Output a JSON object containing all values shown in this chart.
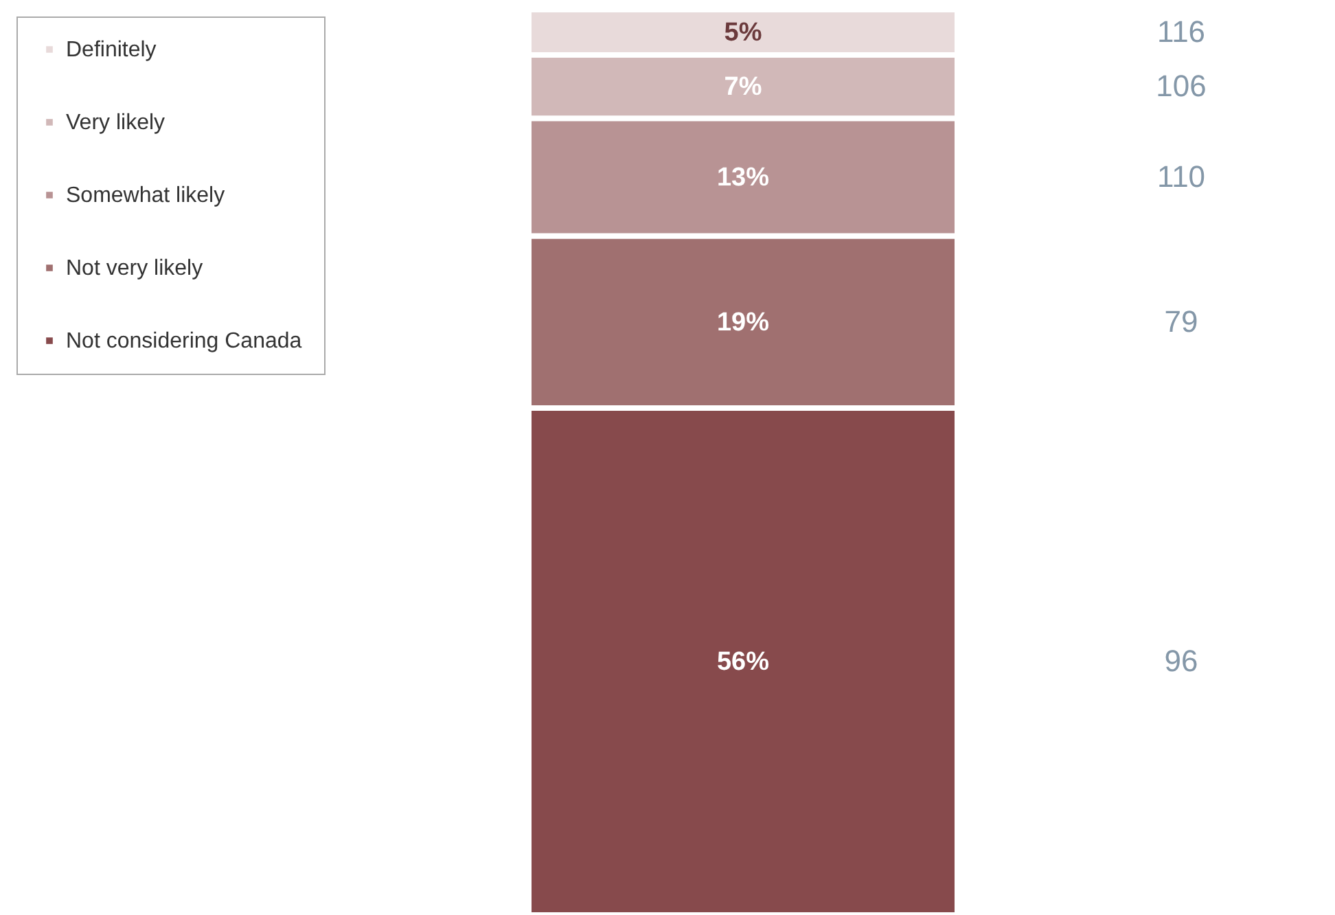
{
  "chart_data": {
    "type": "bar",
    "stacked": true,
    "categories": [
      null
    ],
    "legend": "top left",
    "ylim": [
      0,
      100
    ],
    "series": [
      {
        "name": "Not considering Canada",
        "color": "#874a4c",
        "values": [
          56
        ],
        "value_labels": [
          "56%"
        ]
      },
      {
        "name": "Not very likely",
        "color": "#a07070",
        "values": [
          19
        ],
        "value_labels": [
          "19%"
        ]
      },
      {
        "name": "Somewhat likely",
        "color": "#b89394",
        "values": [
          13
        ],
        "value_labels": [
          "13%"
        ]
      },
      {
        "name": "Very likely",
        "color": "#d1b8b8",
        "values": [
          7
        ],
        "value_labels": [
          "7%"
        ]
      },
      {
        "name": "Definitely",
        "color": "#e8dada",
        "values": [
          5
        ],
        "value_labels": [
          "5%"
        ]
      }
    ],
    "annotations": [
      "116",
      "106",
      "110",
      "79",
      "96"
    ]
  }
}
